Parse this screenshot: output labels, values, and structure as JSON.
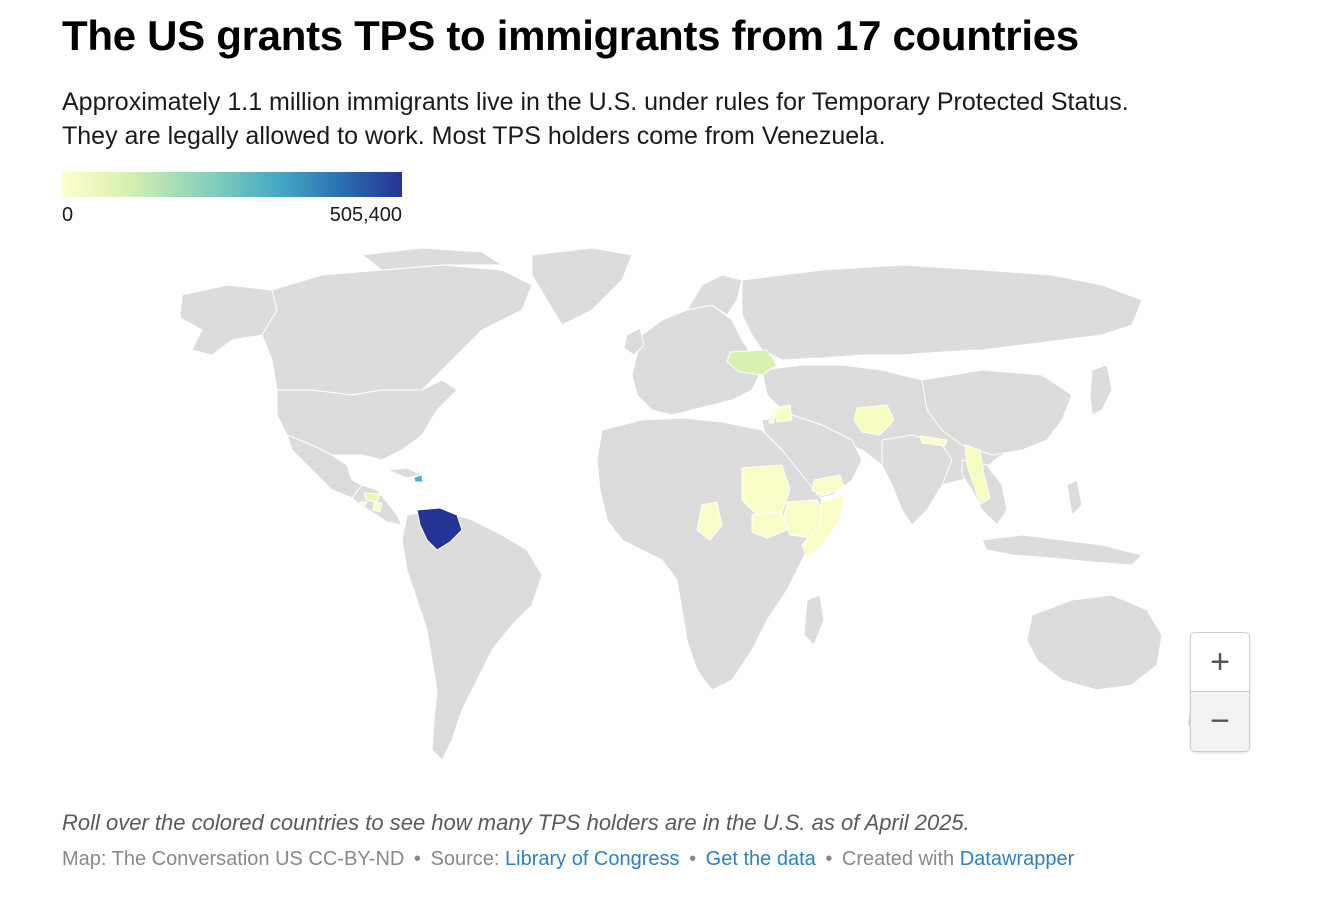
{
  "header": {
    "title": "The US grants TPS to immigrants from 17 countries",
    "subtitle_line1": "Approximately 1.1 million immigrants live in the U.S. under rules for Temporary Protected Status.",
    "subtitle_line2": "They are legally allowed to work. Most TPS holders come from Venezuela."
  },
  "legend": {
    "min_label": "0",
    "max_label": "505,400",
    "colors": [
      "#ffffcc",
      "#c7e9b4",
      "#7fcdbb",
      "#41b6c4",
      "#2c7fb8",
      "#253494"
    ]
  },
  "map": {
    "land_color": "#dcdcdc",
    "border_color": "#ffffff",
    "highlighted_countries": [
      "Venezuela",
      "Haiti",
      "Ukraine",
      "Honduras",
      "El Salvador",
      "Nicaragua",
      "Sudan",
      "South Sudan",
      "Ethiopia",
      "Somalia",
      "Yemen",
      "Syria",
      "Lebanon",
      "Afghanistan",
      "Nepal",
      "Myanmar",
      "Cameroon"
    ]
  },
  "chart_data": {
    "type": "choropleth",
    "scale_min": 0,
    "scale_max": 505400
  },
  "zoom": {
    "in_label": "+",
    "out_label": "−"
  },
  "footer": {
    "note": "Roll over the colored countries to see how many TPS holders are in the U.S. as of April 2025.",
    "credit_prefix": "Map: The Conversation US CC-BY-ND",
    "source_prefix": "Source:",
    "source_link": "Library of Congress",
    "data_link": "Get the data",
    "created_prefix": "Created with",
    "created_link": "Datawrapper",
    "separator": "•"
  }
}
